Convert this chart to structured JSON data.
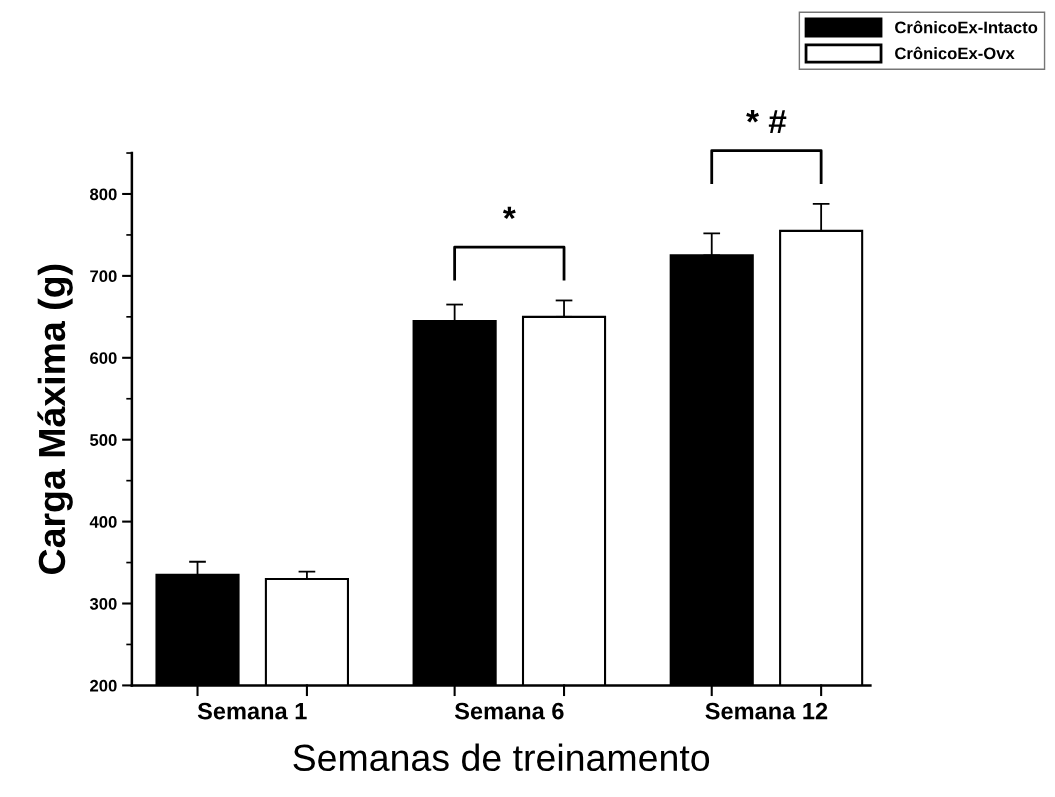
{
  "chart_data": {
    "type": "bar",
    "xlabel": "Semanas de treinamento",
    "ylabel": "Carga Máxima (g)",
    "categories": [
      "Semana 1",
      "Semana 6",
      "Semana 12"
    ],
    "series": [
      {
        "name": "CrônicoEx-Intacto",
        "color": "#000000",
        "values": [
          335,
          645,
          725
        ],
        "errors": [
          16,
          20,
          27
        ]
      },
      {
        "name": "CrônicoEx-Ovx",
        "color": "#ffffff",
        "values": [
          330,
          650,
          755
        ],
        "errors": [
          9,
          20,
          33
        ]
      }
    ],
    "ylim": [
      200,
      850
    ],
    "yticks": [
      200,
      300,
      400,
      500,
      600,
      700,
      800
    ],
    "annotations": [
      "*",
      "* #"
    ],
    "legend": "top right",
    "grid": false
  }
}
